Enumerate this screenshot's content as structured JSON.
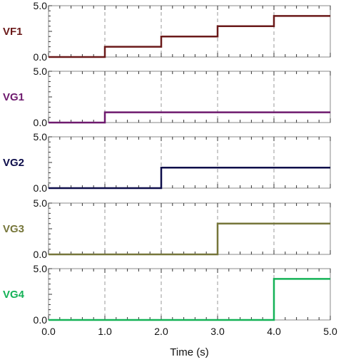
{
  "chart_data": {
    "type": "line",
    "subtype": "step",
    "layout": "stacked-panels",
    "xlabel": "Time (s)",
    "xlim": [
      0,
      5
    ],
    "x_major_ticks": [
      0,
      1,
      2,
      3,
      4,
      5
    ],
    "x_tick_labels": [
      "0.0",
      "1.0",
      "2.0",
      "3.0",
      "4.0",
      "5.0"
    ],
    "x_minor_step": 0.2,
    "ylim": [
      0,
      5
    ],
    "y_tick_labels": [
      "0.0",
      "5.0"
    ],
    "grid": "vertical dashed at major x ticks",
    "panels": [
      {
        "name": "VF1",
        "color": "#6b1a1a",
        "x": [
          0,
          1,
          1,
          2,
          2,
          3,
          3,
          4,
          4,
          5
        ],
        "y": [
          0,
          0,
          1,
          1,
          2,
          2,
          3,
          3,
          4,
          4
        ]
      },
      {
        "name": "VG1",
        "color": "#6e1a6e",
        "x": [
          0,
          1,
          1,
          5
        ],
        "y": [
          0,
          0,
          1,
          1
        ]
      },
      {
        "name": "VG2",
        "color": "#0d0d4a",
        "x": [
          0,
          2,
          2,
          5
        ],
        "y": [
          0,
          0,
          2,
          2
        ]
      },
      {
        "name": "VG3",
        "color": "#76763a",
        "x": [
          0,
          3,
          3,
          5
        ],
        "y": [
          0,
          0,
          3,
          3
        ]
      },
      {
        "name": "VG4",
        "color": "#15b257",
        "x": [
          0,
          4,
          4,
          5
        ],
        "y": [
          0,
          0,
          4,
          4
        ]
      }
    ]
  }
}
